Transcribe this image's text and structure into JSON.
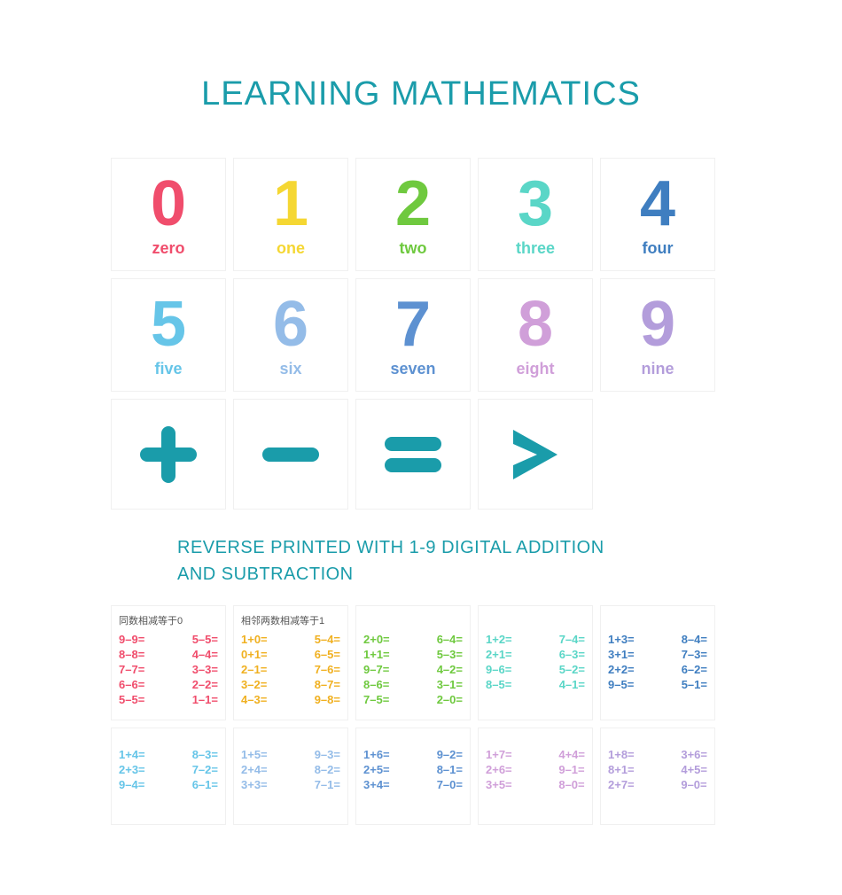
{
  "colors": {
    "teal": "#1a9caa",
    "border": "#f0f0f0",
    "bg": "#ffffff"
  },
  "title": "LEARNING MATHEMATICS",
  "subtitle_line1": "REVERSE PRINTED WITH 1-9 DIGITAL ADDITION",
  "subtitle_line2": "AND SUBTRACTION",
  "number_cards": [
    {
      "digit": "0",
      "word": "zero",
      "color": "#f04d6c"
    },
    {
      "digit": "1",
      "word": "one",
      "color": "#f5d733"
    },
    {
      "digit": "2",
      "word": "two",
      "color": "#6fc93f"
    },
    {
      "digit": "3",
      "word": "three",
      "color": "#5ad6c7"
    },
    {
      "digit": "4",
      "word": "four",
      "color": "#3f7ec0"
    },
    {
      "digit": "5",
      "word": "five",
      "color": "#66c5e8"
    },
    {
      "digit": "6",
      "word": "six",
      "color": "#94bce8"
    },
    {
      "digit": "7",
      "word": "seven",
      "color": "#5d91d1"
    },
    {
      "digit": "8",
      "word": "eight",
      "color": "#d09fd9"
    },
    {
      "digit": "9",
      "word": "nine",
      "color": "#b39ddb"
    }
  ],
  "symbol_cards": [
    {
      "name": "plus",
      "color": "#1a9caa"
    },
    {
      "name": "minus",
      "color": "#1a9caa"
    },
    {
      "name": "equals",
      "color": "#1a9caa"
    },
    {
      "name": "greater",
      "color": "#1a9caa"
    }
  ],
  "eq_cards_row1": [
    {
      "header": "同数相减等于0",
      "color": "#f04d6c",
      "left": [
        "9–9=",
        "8–8=",
        "7–7=",
        "6–6=",
        "5–5="
      ],
      "right": [
        "5–5=",
        "4–4=",
        "3–3=",
        "2–2=",
        "1–1="
      ]
    },
    {
      "header": "相邻两数相减等于1",
      "color": "#f0b020",
      "left": [
        "1+0=",
        "0+1=",
        "2–1=",
        "3–2=",
        "4–3="
      ],
      "right": [
        "5–4=",
        "6–5=",
        "7–6=",
        "8–7=",
        "9–8="
      ]
    },
    {
      "header": "",
      "color": "#6fc93f",
      "left": [
        "2+0=",
        "1+1=",
        "9–7=",
        "8–6=",
        "7–5="
      ],
      "right": [
        "6–4=",
        "5–3=",
        "4–2=",
        "3–1=",
        "2–0="
      ]
    },
    {
      "header": "",
      "color": "#5ad6c7",
      "left": [
        "1+2=",
        "2+1=",
        "9–6=",
        "8–5="
      ],
      "right": [
        "7–4=",
        "6–3=",
        "5–2=",
        "4–1="
      ]
    },
    {
      "header": "",
      "color": "#3f7ec0",
      "left": [
        "1+3=",
        "3+1=",
        "2+2=",
        "9–5="
      ],
      "right": [
        "8–4=",
        "7–3=",
        "6–2=",
        "5–1="
      ]
    }
  ],
  "eq_cards_row2": [
    {
      "color": "#66c5e8",
      "left": [
        "1+4=",
        "2+3=",
        "9–4="
      ],
      "right": [
        "8–3=",
        "7–2=",
        "6–1="
      ]
    },
    {
      "color": "#94bce8",
      "left": [
        "1+5=",
        "2+4=",
        "3+3="
      ],
      "right": [
        "9–3=",
        "8–2=",
        "7–1="
      ]
    },
    {
      "color": "#5d91d1",
      "left": [
        "1+6=",
        "2+5=",
        "3+4="
      ],
      "right": [
        "9–2=",
        "8–1=",
        "7–0="
      ]
    },
    {
      "color": "#d09fd9",
      "left": [
        "1+7=",
        "2+6=",
        "3+5="
      ],
      "right": [
        "4+4=",
        "9–1=",
        "8–0="
      ]
    },
    {
      "color": "#b39ddb",
      "left": [
        "1+8=",
        "8+1=",
        "2+7="
      ],
      "right": [
        "3+6=",
        "4+5=",
        "9–0="
      ]
    }
  ]
}
